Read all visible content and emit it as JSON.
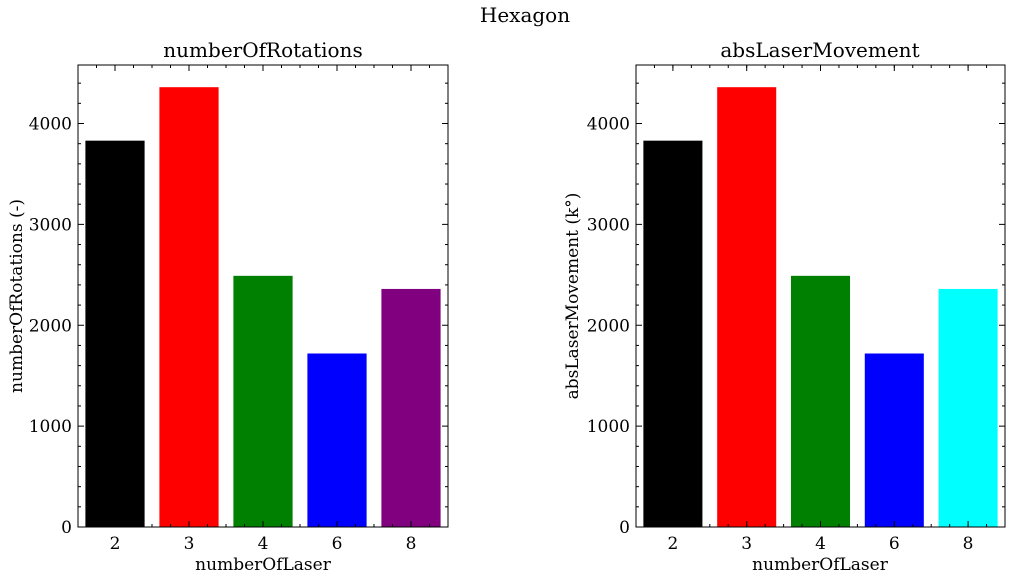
{
  "figure_title": "Hexagon",
  "chart_data": [
    {
      "type": "bar",
      "title": "numberOfRotations",
      "xlabel": "numberOfLaser",
      "ylabel": "numberOfRotations (-)",
      "categories": [
        "2",
        "3",
        "4",
        "6",
        "8"
      ],
      "values": [
        3830,
        4360,
        2490,
        1720,
        2360
      ],
      "colors": [
        "#000000",
        "#ff0000",
        "#008000",
        "#0000ff",
        "#800080"
      ],
      "ylim": [
        0,
        4580
      ],
      "yticks": [
        0,
        1000,
        2000,
        3000,
        4000
      ],
      "grid": false,
      "legend": "none"
    },
    {
      "type": "bar",
      "title": "absLaserMovement",
      "xlabel": "numberOfLaser",
      "ylabel": "absLaserMovement (k°)",
      "categories": [
        "2",
        "3",
        "4",
        "6",
        "8"
      ],
      "values": [
        3830,
        4360,
        2490,
        1720,
        2360
      ],
      "colors": [
        "#000000",
        "#ff0000",
        "#008000",
        "#0000ff",
        "#00ffff"
      ],
      "ylim": [
        0,
        4580
      ],
      "yticks": [
        0,
        1000,
        2000,
        3000,
        4000
      ],
      "grid": false,
      "legend": "none"
    }
  ]
}
